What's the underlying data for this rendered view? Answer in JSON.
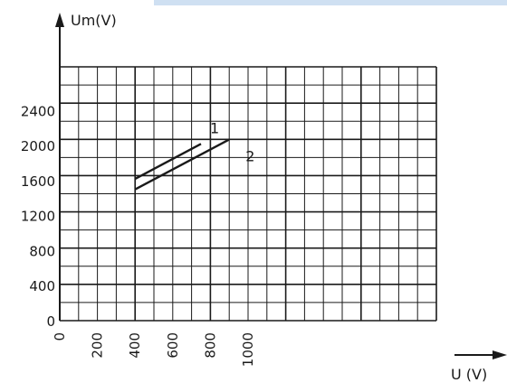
{
  "chart_data": {
    "type": "line",
    "xlabel": "U (V)",
    "ylabel": "Um(V)",
    "x_ticks": [
      "0",
      "200",
      "400",
      "600",
      "800",
      "1000"
    ],
    "y_ticks": [
      "0",
      "400",
      "800",
      "1200",
      "1600",
      "2000",
      "2400"
    ],
    "xlim": [
      0,
      2000
    ],
    "ylim": [
      0,
      2900
    ],
    "grid": true,
    "series": [
      {
        "name": "1",
        "x": [
          400,
          750
        ],
        "y": [
          1620,
          2020
        ],
        "color": "#1a1a1a"
      },
      {
        "name": "2",
        "x": [
          400,
          900
        ],
        "y": [
          1500,
          2070
        ],
        "color": "#1a1a1a"
      }
    ]
  }
}
